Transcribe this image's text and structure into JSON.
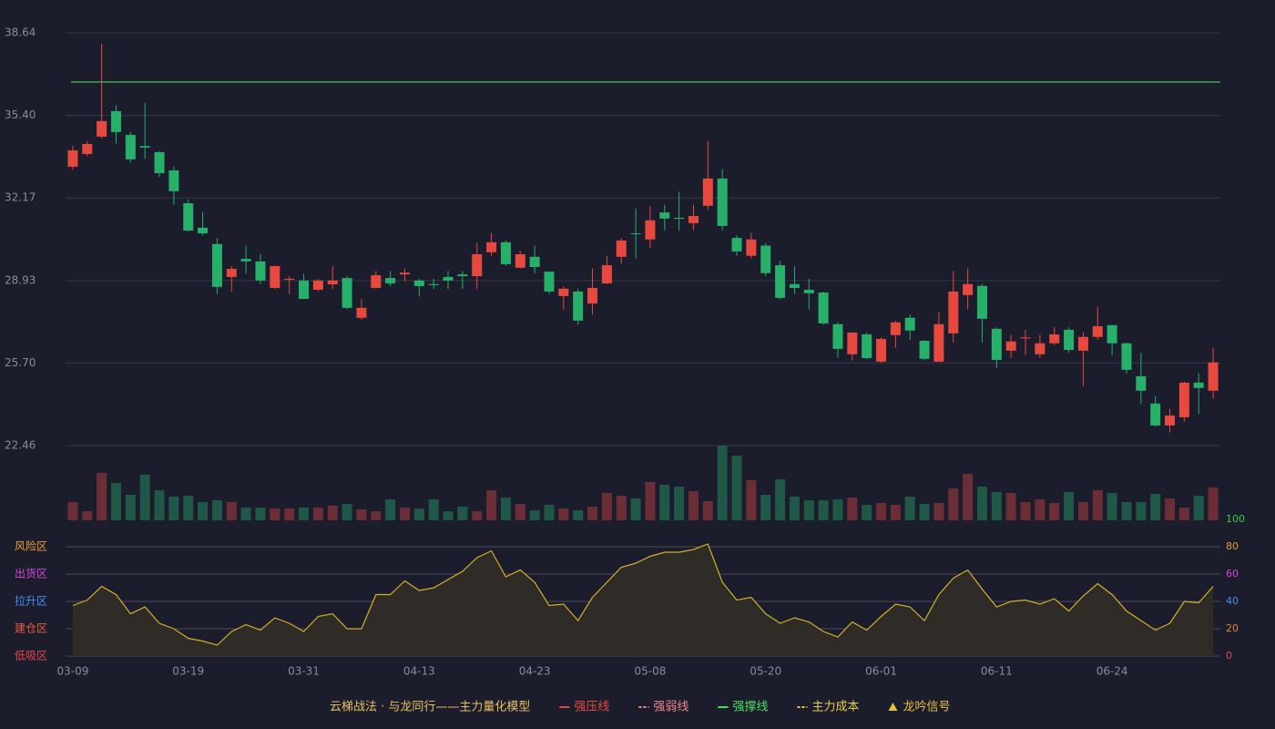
{
  "chart_data": [
    {
      "type": "candlestick",
      "categories": [
        "03-09",
        null,
        null,
        null,
        null,
        null,
        null,
        null,
        "03-19",
        null,
        null,
        null,
        null,
        null,
        null,
        null,
        "03-31",
        null,
        null,
        null,
        null,
        null,
        null,
        null,
        "04-13",
        null,
        null,
        null,
        null,
        null,
        null,
        null,
        "04-23",
        null,
        null,
        null,
        null,
        null,
        null,
        null,
        "05-08",
        null,
        null,
        null,
        null,
        null,
        null,
        null,
        "05-20",
        null,
        null,
        null,
        null,
        null,
        null,
        null,
        "06-01",
        null,
        null,
        null,
        null,
        null,
        null,
        null,
        "06-11",
        null,
        null,
        null,
        null,
        null,
        null,
        null,
        "06-24",
        null,
        null,
        null,
        null,
        null,
        null,
        null
      ],
      "open": [
        33.39,
        33.89,
        34.57,
        35.57,
        34.64,
        34.2,
        33.96,
        33.25,
        31.96,
        31.0,
        30.36,
        29.07,
        29.78,
        29.68,
        28.64,
        28.96,
        28.93,
        28.57,
        28.78,
        29.03,
        27.47,
        28.64,
        29.03,
        29.17,
        28.93,
        28.79,
        29.07,
        29.17,
        29.1,
        30.04,
        30.43,
        29.43,
        29.86,
        29.28,
        28.32,
        28.5,
        28.03,
        28.82,
        29.86,
        30.78,
        30.54,
        31.6,
        31.39,
        31.18,
        31.86,
        32.93,
        30.6,
        29.9,
        30.3,
        29.53,
        28.79,
        28.57,
        28.46,
        27.22,
        26.04,
        26.82,
        25.75,
        26.79,
        27.47,
        26.57,
        25.75,
        26.86,
        28.36,
        28.72,
        27.04,
        26.18,
        26.66,
        26.04,
        26.47,
        27.0,
        26.18,
        26.72,
        27.18,
        26.47,
        25.18,
        24.11,
        23.25,
        23.57,
        24.93,
        24.61
      ],
      "high": [
        34.21,
        34.4,
        38.2,
        35.8,
        34.75,
        35.9,
        34.0,
        33.4,
        32.1,
        31.6,
        30.6,
        29.5,
        30.3,
        29.96,
        29.5,
        29.1,
        29.2,
        29.0,
        29.5,
        29.1,
        28.2,
        29.3,
        29.3,
        29.4,
        29.0,
        29.0,
        29.3,
        29.3,
        30.4,
        30.8,
        30.5,
        30.1,
        30.3,
        29.3,
        28.7,
        28.6,
        29.4,
        29.9,
        30.6,
        31.75,
        31.85,
        31.9,
        32.4,
        31.9,
        34.4,
        33.3,
        30.7,
        30.8,
        30.4,
        29.7,
        29.5,
        29.0,
        28.5,
        27.3,
        26.9,
        26.9,
        26.7,
        27.35,
        27.6,
        26.6,
        27.7,
        29.3,
        29.4,
        28.8,
        27.1,
        26.8,
        27.0,
        26.8,
        27.1,
        27.1,
        26.9,
        27.9,
        27.2,
        26.5,
        26.1,
        24.4,
        23.9,
        24.97,
        25.3,
        26.3
      ],
      "low": [
        33.28,
        33.8,
        34.5,
        34.3,
        33.55,
        33.7,
        33.0,
        31.9,
        30.85,
        30.7,
        28.4,
        28.5,
        29.2,
        28.8,
        28.6,
        28.4,
        28.2,
        28.5,
        28.6,
        27.8,
        27.4,
        28.6,
        28.7,
        28.9,
        28.3,
        28.6,
        28.6,
        28.6,
        28.6,
        29.9,
        29.5,
        29.4,
        29.2,
        28.4,
        27.8,
        27.2,
        27.6,
        28.8,
        29.6,
        29.8,
        30.2,
        30.9,
        30.9,
        30.9,
        31.7,
        30.9,
        29.9,
        29.8,
        29.1,
        28.2,
        28.4,
        27.8,
        27.2,
        25.9,
        25.8,
        25.85,
        25.7,
        26.3,
        26.6,
        25.8,
        25.75,
        26.5,
        27.8,
        26.5,
        25.5,
        25.9,
        26.0,
        25.9,
        26.4,
        26.1,
        24.8,
        26.6,
        26.0,
        25.3,
        24.1,
        23.2,
        22.97,
        23.4,
        23.7,
        24.3
      ],
      "close": [
        34.03,
        34.28,
        35.18,
        34.75,
        33.68,
        34.14,
        33.14,
        32.43,
        30.89,
        30.78,
        28.68,
        29.39,
        29.68,
        28.93,
        29.5,
        29.0,
        28.21,
        28.93,
        28.93,
        27.86,
        27.86,
        29.14,
        28.82,
        29.24,
        28.71,
        28.75,
        28.93,
        29.1,
        29.96,
        30.43,
        29.57,
        29.96,
        29.46,
        28.5,
        28.61,
        27.36,
        28.64,
        29.53,
        30.5,
        30.75,
        31.29,
        31.36,
        31.35,
        31.46,
        32.93,
        31.07,
        30.07,
        30.54,
        29.22,
        28.25,
        28.64,
        28.43,
        27.25,
        26.25,
        26.89,
        25.89,
        26.64,
        27.29,
        26.97,
        25.86,
        27.22,
        28.5,
        28.79,
        27.43,
        25.82,
        26.54,
        26.7,
        26.47,
        26.82,
        26.21,
        26.72,
        27.14,
        26.47,
        25.43,
        24.61,
        23.25,
        23.64,
        24.93,
        24.72,
        25.72
      ],
      "up_color": "#e8493f",
      "down_color": "#26b06a",
      "reference_line": {
        "value": 36.71,
        "color": "#3fa34d"
      },
      "ylim": [
        22.46,
        38.64
      ],
      "yticks": [
        22.46,
        {
          "value": 25.7,
          "label": "25.70"
        },
        28.93,
        32.17,
        {
          "value": 35.4,
          "label": "35.40"
        },
        38.64
      ],
      "grid": true
    },
    {
      "type": "bar",
      "values": [
        20,
        10,
        52,
        41,
        28,
        50,
        33,
        26,
        27,
        20,
        22,
        20,
        14,
        14,
        13,
        13,
        14,
        14,
        16,
        18,
        12,
        10,
        23,
        14,
        13,
        23,
        10,
        15,
        10,
        33,
        25,
        18,
        11,
        17,
        13,
        11,
        15,
        30,
        27,
        24,
        42,
        39,
        37,
        32,
        21,
        82,
        71,
        44,
        28,
        45,
        26,
        22,
        22,
        23,
        25,
        17,
        19,
        17,
        26,
        18,
        19,
        35,
        51,
        37,
        31,
        30,
        20,
        23,
        19,
        31,
        20,
        33,
        30,
        20,
        20,
        29,
        24,
        14,
        27,
        36
      ],
      "up_color": "#6b2e37",
      "down_color": "#1f5847"
    },
    {
      "type": "area",
      "values": [
        37,
        41,
        51,
        45,
        31,
        36,
        24,
        20,
        13,
        11,
        8,
        18,
        23,
        19,
        28,
        24,
        18,
        29,
        31,
        20,
        20,
        45,
        45,
        55,
        48,
        50,
        56,
        62,
        72,
        77,
        58,
        63,
        54,
        37,
        38,
        26,
        43,
        54,
        65,
        68,
        73,
        76,
        76,
        78,
        82,
        54,
        41,
        43,
        31,
        24,
        28,
        25,
        18,
        14,
        25,
        19,
        29,
        38,
        36,
        26,
        45,
        57,
        63,
        49,
        36,
        40,
        41,
        38,
        42,
        33,
        44,
        53,
        45,
        33,
        26,
        19,
        24,
        40,
        39,
        51
      ],
      "color": "#d4b02a",
      "fill": "#2f2b27",
      "ylim": [
        0,
        100
      ],
      "yticks": [
        0,
        20,
        40,
        60,
        80,
        100
      ],
      "ytick_colors": [
        "#e84848",
        "#e8803a",
        "#4a8ef0",
        "#d848d8",
        "#e8a030",
        "#3ad040"
      ],
      "zones": [
        {
          "value": 80,
          "label": "风险区",
          "color": "#e8a030"
        },
        {
          "value": 60,
          "label": "出货区",
          "color": "#d848d8"
        },
        {
          "value": 40,
          "label": "拉升区",
          "color": "#4a8ef0"
        },
        {
          "value": 20,
          "label": "建仓区",
          "color": "#e85a48"
        },
        {
          "value": 0,
          "label": "低吸区",
          "color": "#e84848"
        }
      ]
    }
  ],
  "legend": {
    "title": "云梯战法 · 与龙同行——主力量化模型",
    "title_color": "#e8c060",
    "items": [
      {
        "label": "强压线",
        "color": "#e8493f",
        "marker": "line"
      },
      {
        "label": "强弱线",
        "color": "#f08a8a",
        "marker": "dash"
      },
      {
        "label": "强撑线",
        "color": "#4ae05a",
        "marker": "line"
      },
      {
        "label": "主力成本",
        "color": "#e8d040",
        "marker": "dash"
      },
      {
        "label": "龙吟信号",
        "color": "#e8c040",
        "marker": "triangle"
      }
    ]
  }
}
